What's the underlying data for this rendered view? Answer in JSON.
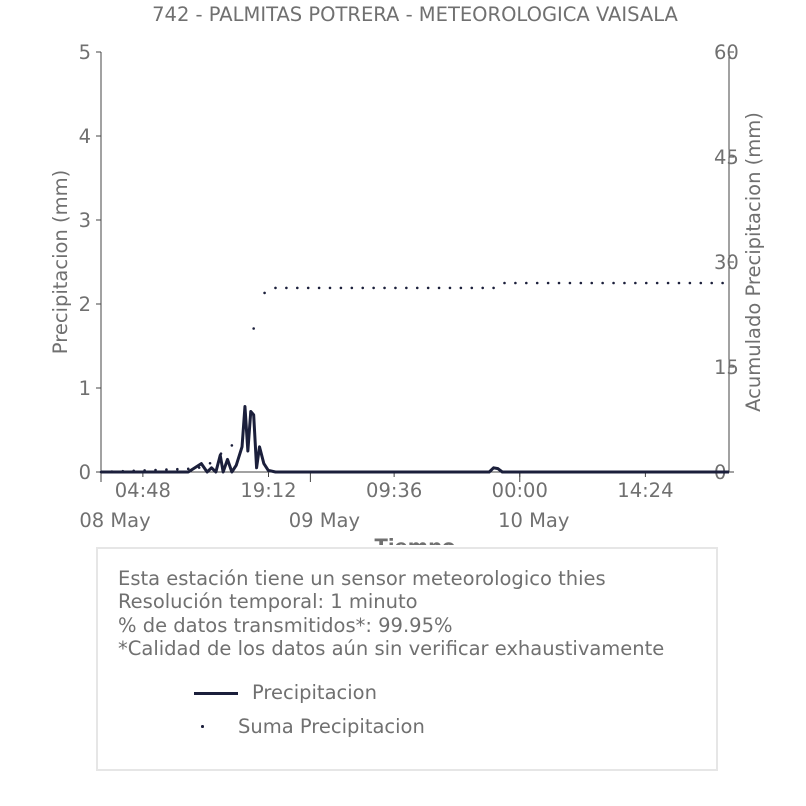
{
  "chart_data": {
    "type": "line",
    "title": "742 - PALMITAS POTRERA - METEOROLOGICA VAISALA",
    "xlabel": "Tiempo",
    "ylabel": "Precipitacion (mm)",
    "y2label": "Acumulado Precipitacion (mm)",
    "ylim": [
      0,
      5
    ],
    "y2lim": [
      0,
      60
    ],
    "yticks": [
      "0",
      "1",
      "2",
      "3",
      "4",
      "5"
    ],
    "y2ticks": [
      "0",
      "15",
      "30",
      "45",
      "60"
    ],
    "xlim": [
      "2024-05-08 00:00",
      "2024-05-10 23:59"
    ],
    "xticks": [
      "04:48",
      "19:12",
      "09:36",
      "00:00",
      "14:24"
    ],
    "xticks_secondary": [
      "08 May",
      "09 May",
      "10 May"
    ],
    "grid": false,
    "series": [
      {
        "name": "Precipitacion",
        "style": "line",
        "color": "#1b1f3b",
        "axis": "left",
        "x": [
          "2024-05-08 00:00",
          "2024-05-08 10:00",
          "2024-05-08 11:30",
          "2024-05-08 12:10",
          "2024-05-08 12:40",
          "2024-05-08 13:10",
          "2024-05-08 13:40",
          "2024-05-08 14:00",
          "2024-05-08 14:30",
          "2024-05-08 15:00",
          "2024-05-08 15:30",
          "2024-05-08 16:10",
          "2024-05-08 16:30",
          "2024-05-08 16:50",
          "2024-05-08 17:10",
          "2024-05-08 17:30",
          "2024-05-08 17:50",
          "2024-05-08 18:10",
          "2024-05-08 18:40",
          "2024-05-08 19:10",
          "2024-05-08 20:00",
          "2024-05-09 20:30",
          "2024-05-09 21:00",
          "2024-05-09 21:30",
          "2024-05-09 22:00",
          "2024-05-10 23:59"
        ],
        "y": [
          0,
          0,
          0.1,
          0,
          0.05,
          0,
          0.2,
          0,
          0.15,
          0,
          0.08,
          0.3,
          0.78,
          0.25,
          0.72,
          0.68,
          0.05,
          0.3,
          0.1,
          0.02,
          0,
          0,
          0.05,
          0.04,
          0,
          0
        ]
      },
      {
        "name": "Suma Precipitacion",
        "style": "dots",
        "color": "#1b1f3b",
        "axis": "right",
        "x": [
          "2024-05-08 00:00",
          "2024-05-08 11:00",
          "2024-05-08 13:00",
          "2024-05-08 14:00",
          "2024-05-08 16:30",
          "2024-05-08 16:50",
          "2024-05-08 17:30",
          "2024-05-08 18:00",
          "2024-05-08 18:40",
          "2024-05-08 19:10",
          "2024-05-08 20:00",
          "2024-05-08 22:00",
          "2024-05-09 21:00",
          "2024-05-09 21:30",
          "2024-05-10 23:59"
        ],
        "y": [
          0,
          0.5,
          1.5,
          3.0,
          5.0,
          11.3,
          20.5,
          21.0,
          25.5,
          26.0,
          26.3,
          26.3,
          26.3,
          27.0,
          27.0
        ]
      }
    ]
  },
  "info": {
    "lines": [
      "Esta estación tiene un sensor meteorologico thies",
      "Resolución temporal: 1 minuto",
      "% de datos transmitidos*: 99.95%",
      "*Calidad de los datos aún sin verificar exhaustivamente"
    ]
  },
  "legend": {
    "line_label": "Precipitacion",
    "dot_label": "Suma Precipitacion"
  },
  "colors": {
    "series": "#1b1f3b",
    "text": "#707070",
    "border": "#e6e6e6"
  }
}
